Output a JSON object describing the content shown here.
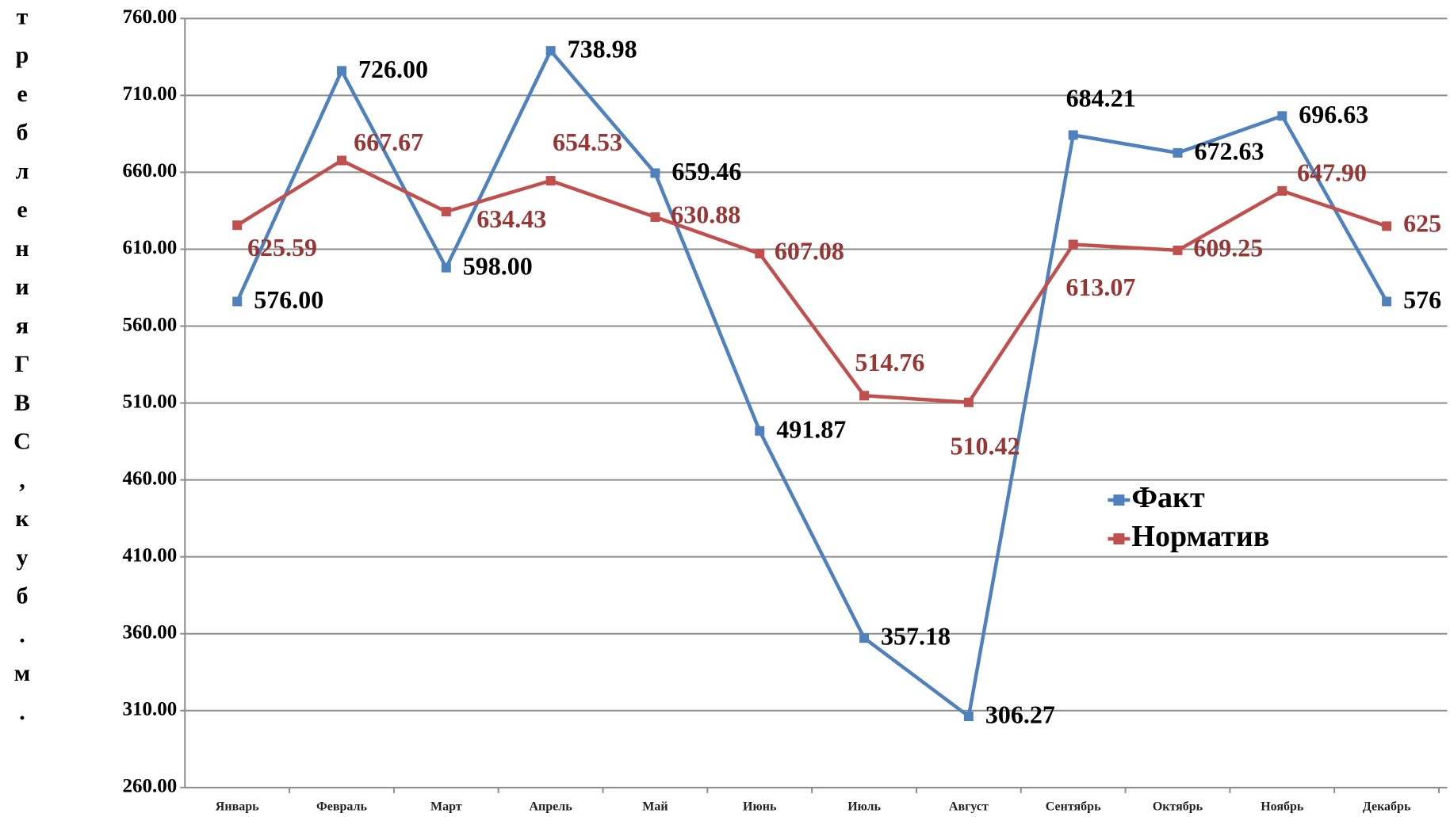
{
  "chart_data": {
    "type": "line",
    "y_label": "требления ГВС, куб.м.",
    "categories": [
      "Январь",
      "Февраль",
      "Март",
      "Апрель",
      "Май",
      "Июнь",
      "Июль",
      "Август",
      "Сентябрь",
      "Октябрь",
      "Ноябрь",
      "Декабрь"
    ],
    "series": [
      {
        "name": "Факт",
        "color": "#4f81bd",
        "label_color": "#000000",
        "values": [
          576.0,
          726.0,
          598.0,
          738.98,
          659.46,
          491.87,
          357.18,
          306.27,
          684.21,
          672.63,
          696.63,
          576
        ],
        "value_labels": [
          "576.00",
          "726.00",
          "598.00",
          "738.98",
          "659.46",
          "491.87",
          "357.18",
          "306.27",
          "684.21",
          "672.63",
          "696.63",
          "576"
        ]
      },
      {
        "name": "Норматив",
        "color": "#c0504d",
        "label_color": "#953735",
        "values": [
          625.59,
          667.67,
          634.43,
          654.53,
          630.88,
          607.08,
          514.76,
          510.42,
          613.07,
          609.25,
          647.9,
          625
        ],
        "value_labels": [
          "625.59",
          "667.67",
          "634.43",
          "654.53",
          "630.88",
          "607.08",
          "514.76",
          "510.42",
          "613.07",
          "609.25",
          "647.90",
          "625"
        ]
      }
    ],
    "ylim": [
      260,
      760
    ],
    "yticks": [
      {
        "value": 260,
        "label": "260.00"
      },
      {
        "value": 310,
        "label": "310.00"
      },
      {
        "value": 360,
        "label": "360.00"
      },
      {
        "value": 410,
        "label": "410.00"
      },
      {
        "value": 460,
        "label": "460.00"
      },
      {
        "value": 510,
        "label": "510.00"
      },
      {
        "value": 560,
        "label": "560.00"
      },
      {
        "value": 610,
        "label": "610.00"
      },
      {
        "value": 660,
        "label": "660.00"
      },
      {
        "value": 710,
        "label": "710.00"
      },
      {
        "value": 760,
        "label": "760.00"
      }
    ],
    "grid": true,
    "legend": "right"
  }
}
